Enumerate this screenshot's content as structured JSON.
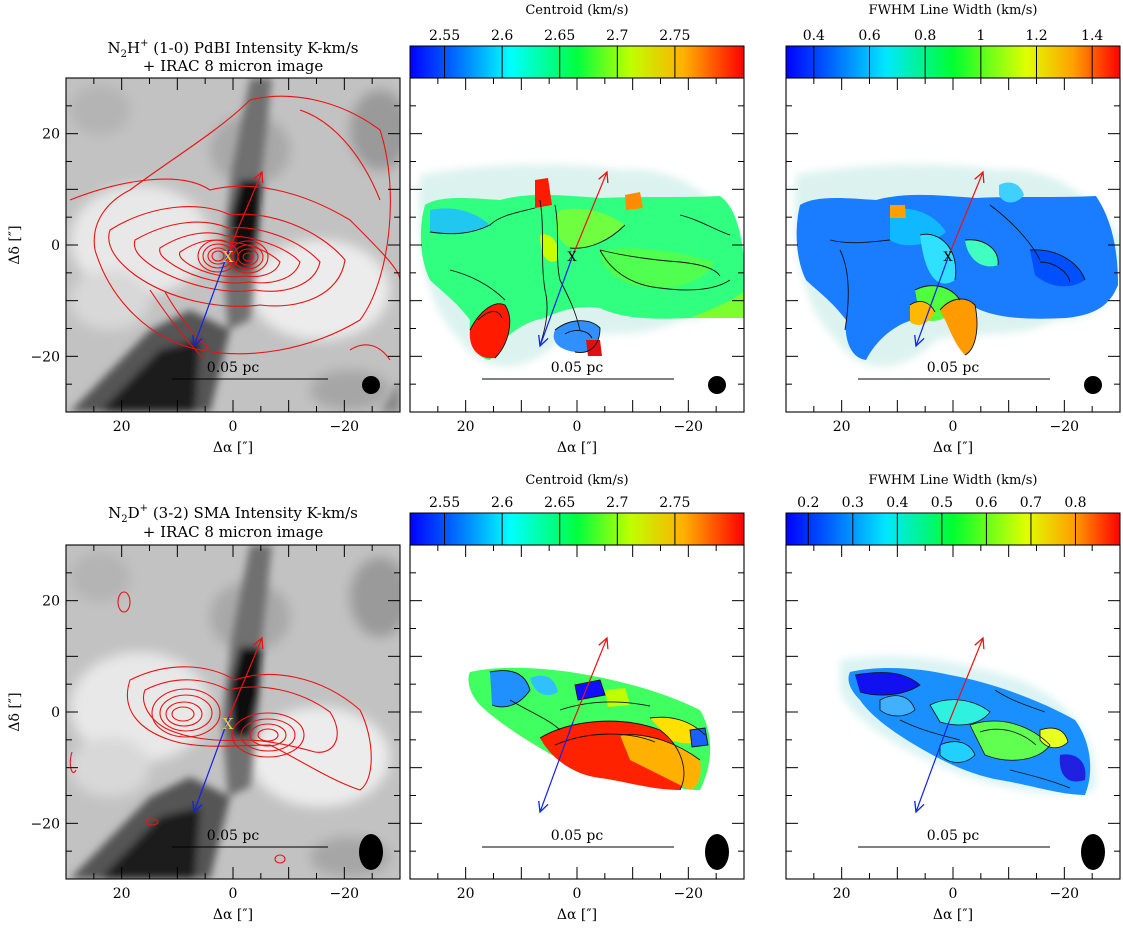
{
  "figure": {
    "type": "astronomical-maps",
    "x_axis_label": "Δα [″]",
    "y_axis_label": "Δδ [″]",
    "x_ticks": [
      20,
      0,
      -20
    ],
    "y_ticks": [
      20,
      0,
      -20
    ],
    "x_range": [
      30,
      -30
    ],
    "y_range": [
      -30,
      30
    ],
    "scale_bar_label": "0.05 pc",
    "source_marker": "X",
    "outflow_arrows": {
      "red": {
        "from": [
          -0.5,
          1.0
        ],
        "to": [
          -5.0,
          14.0
        ],
        "color": "#ee1111"
      },
      "blue": {
        "from": [
          -0.5,
          1.0
        ],
        "to": [
          7.0,
          -18.5
        ],
        "color": "#1122ee"
      }
    }
  },
  "panels": {
    "top_left": {
      "title_line1_main": "N",
      "title_line1_sub": "2",
      "title_line1_species": "H",
      "title_line1_sup": "+",
      "title_line1_rest": " (1-0) PdBI Intensity K-km/s",
      "title_line2": "+ IRAC 8 micron image"
    },
    "top_mid": {
      "colorbar_title": "Centroid (km/s)",
      "colorbar_ticks": [
        "2.55",
        "2.6",
        "2.65",
        "2.7",
        "2.75"
      ]
    },
    "top_right": {
      "colorbar_title": "FWHM Line Width (km/s)",
      "colorbar_ticks": [
        "0.4",
        "0.6",
        "0.8",
        "1",
        "1.2",
        "1.4"
      ]
    },
    "bot_left": {
      "title_line1_main": "N",
      "title_line1_sub": "2",
      "title_line1_species": "D",
      "title_line1_sup": "+",
      "title_line1_rest": " (3-2) SMA Intensity K-km/s",
      "title_line2": "+ IRAC 8 micron image"
    },
    "bot_mid": {
      "colorbar_title": "Centroid (km/s)",
      "colorbar_ticks": [
        "2.55",
        "2.6",
        "2.65",
        "2.7",
        "2.75"
      ]
    },
    "bot_right": {
      "colorbar_title": "FWHM Line Width (km/s)",
      "colorbar_ticks": [
        "0.2",
        "0.3",
        "0.4",
        "0.5",
        "0.6",
        "0.7",
        "0.8"
      ]
    }
  },
  "chart_data": [
    {
      "type": "heatmap",
      "panel": "top_left",
      "title": "N2H+ (1-0) PdBI Intensity K-km/s + IRAC 8 micron image",
      "xlabel": "Δα [″]",
      "ylabel": "Δδ [″]",
      "xlim": [
        30,
        -30
      ],
      "ylim": [
        -30,
        30
      ],
      "layers": [
        "IRAC 8 micron greyscale",
        "N2H+ intensity contours (red)"
      ],
      "intensity_peaks": [
        [
          -2,
          -2
        ],
        [
          3,
          -2
        ]
      ],
      "beam": "circle"
    },
    {
      "type": "heatmap",
      "panel": "top_mid",
      "colorbar_title": "Centroid (km/s)",
      "colorbar_range": [
        2.52,
        2.81
      ],
      "colorbar_ticks": [
        2.55,
        2.6,
        2.65,
        2.7,
        2.75
      ],
      "xlabel": "Δα [″]",
      "xlim": [
        30,
        -30
      ],
      "ylim": [
        -30,
        30
      ]
    },
    {
      "type": "heatmap",
      "panel": "top_right",
      "colorbar_title": "FWHM Line Width (km/s)",
      "colorbar_range": [
        0.3,
        1.5
      ],
      "colorbar_ticks": [
        0.4,
        0.6,
        0.8,
        1,
        1.2,
        1.4
      ],
      "xlabel": "Δα [″]",
      "xlim": [
        30,
        -30
      ],
      "ylim": [
        -30,
        30
      ]
    },
    {
      "type": "heatmap",
      "panel": "bot_left",
      "title": "N2D+ (3-2) SMA Intensity K-km/s + IRAC 8 micron image",
      "xlabel": "Δα [″]",
      "ylabel": "Δδ [″]",
      "xlim": [
        30,
        -30
      ],
      "ylim": [
        -30,
        30
      ],
      "layers": [
        "IRAC 8 micron greyscale",
        "N2D+ intensity contours (red)"
      ],
      "intensity_peaks": [
        [
          8,
          0
        ],
        [
          -6,
          -4
        ]
      ],
      "beam": "ellipse"
    },
    {
      "type": "heatmap",
      "panel": "bot_mid",
      "colorbar_title": "Centroid (km/s)",
      "colorbar_range": [
        2.52,
        2.81
      ],
      "colorbar_ticks": [
        2.55,
        2.6,
        2.65,
        2.7,
        2.75
      ],
      "xlabel": "Δα [″]",
      "xlim": [
        30,
        -30
      ],
      "ylim": [
        -30,
        30
      ]
    },
    {
      "type": "heatmap",
      "panel": "bot_right",
      "colorbar_title": "FWHM Line Width (km/s)",
      "colorbar_range": [
        0.15,
        0.9
      ],
      "colorbar_ticks": [
        0.2,
        0.3,
        0.4,
        0.5,
        0.6,
        0.7,
        0.8
      ],
      "xlabel": "Δα [″]",
      "xlim": [
        30,
        -30
      ],
      "ylim": [
        -30,
        30
      ]
    }
  ]
}
